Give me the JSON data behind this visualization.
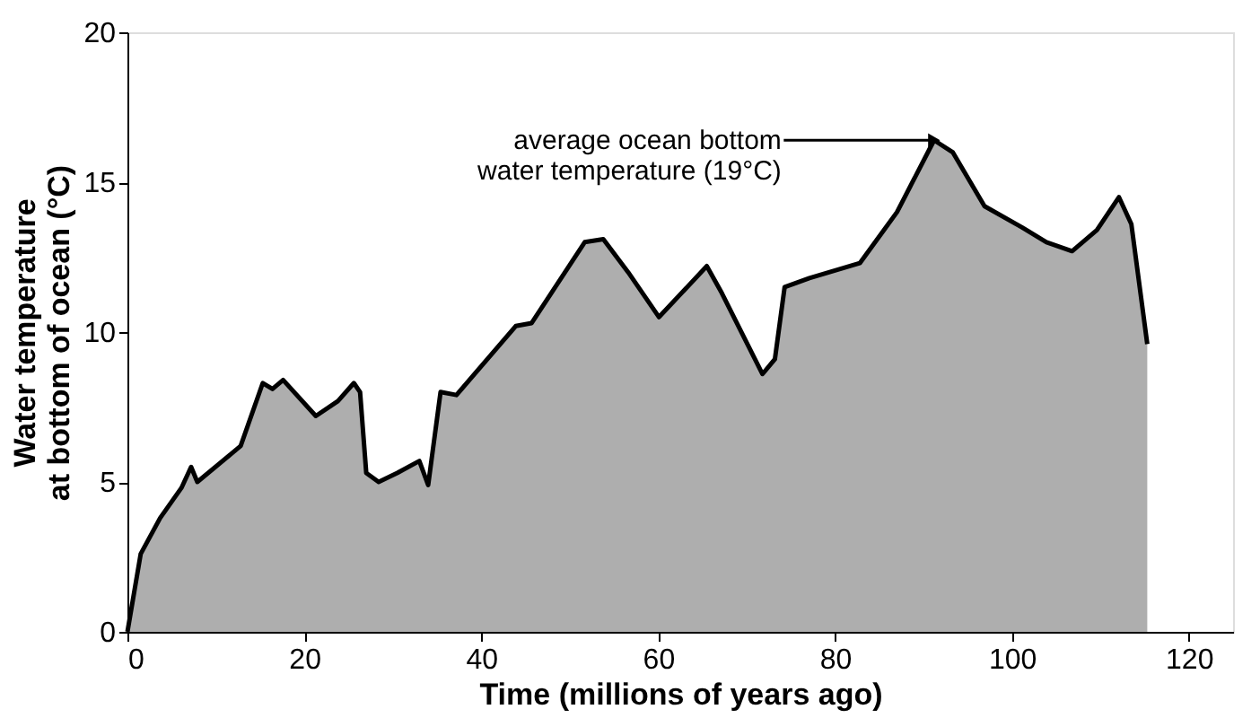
{
  "chart_data": {
    "type": "area",
    "xlabel": "Time (millions of years ago)",
    "ylabel": "Water temperature\nat bottom of ocean (°C)",
    "x": [
      0,
      1.5,
      3.7,
      6.1,
      7.2,
      7.9,
      12.8,
      15.3,
      16.4,
      17.6,
      21.3,
      23.8,
      25.6,
      26.3,
      27.0,
      28.4,
      30.5,
      33.0,
      34.0,
      35.4,
      37.2,
      43.9,
      45.7,
      51.7,
      53.8,
      56.6,
      60.1,
      65.5,
      67.2,
      71.8,
      73.2,
      74.3,
      77.1,
      82.8,
      87.0,
      91.2,
      93.3,
      96.9,
      101.1,
      103.9,
      106.8,
      109.6,
      112.1,
      113.5,
      115.3
    ],
    "series": [
      {
        "color": "#8c8c8c",
        "values": [
          0,
          2.6,
          3.8,
          4.8,
          5.5,
          5.0,
          6.2,
          8.3,
          8.1,
          8.4,
          7.2,
          7.7,
          8.3,
          8.0,
          5.3,
          5.0,
          5.3,
          5.7,
          4.9,
          8.0,
          7.9,
          10.2,
          10.3,
          13.0,
          13.1,
          12.0,
          10.5,
          12.2,
          11.3,
          8.6,
          9.1,
          11.5,
          11.8,
          12.3,
          14.0,
          16.4,
          16.0,
          14.2,
          13.5,
          13.0,
          12.7,
          13.4,
          14.5,
          13.6,
          9.6
        ]
      }
    ],
    "xlim": [
      0,
      125
    ],
    "ylim": [
      0,
      20
    ],
    "xticks": [
      0,
      20,
      40,
      60,
      80,
      100,
      120
    ],
    "yticks": [
      0,
      5,
      10,
      15,
      20
    ],
    "grid": false,
    "annotations": [
      {
        "text": "average ocean bottom\nwater temperature (19°C)",
        "x": 91.2,
        "y": 16.4
      }
    ]
  }
}
